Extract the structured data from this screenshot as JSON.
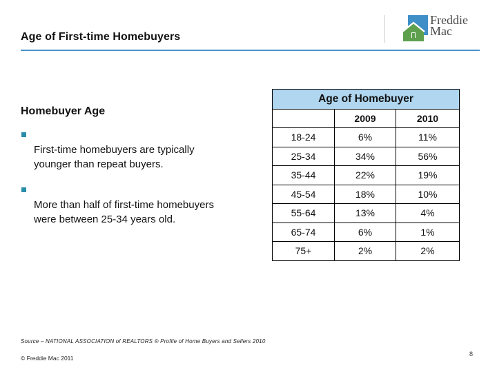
{
  "slide": {
    "title": "Age of First-time Homebuyers",
    "page_number": "8"
  },
  "logo": {
    "line1": "Freddie",
    "line2": "Mac"
  },
  "content": {
    "heading": "Homebuyer Age",
    "bullets": [
      "First-time homebuyers are typically\nyounger than repeat buyers.",
      "More than half of first-time homebuyers\nwere between 25-34 years old."
    ]
  },
  "chart_data": {
    "type": "table",
    "title": "Age of Homebuyer",
    "columns": [
      "",
      "2009",
      "2010"
    ],
    "rows": [
      [
        "18-24",
        "6%",
        "11%"
      ],
      [
        "25-34",
        "34%",
        "56%"
      ],
      [
        "35-44",
        "22%",
        "19%"
      ],
      [
        "45-54",
        "18%",
        "10%"
      ],
      [
        "55-64",
        "13%",
        "4%"
      ],
      [
        "65-74",
        "6%",
        "1%"
      ],
      [
        "75+",
        "2%",
        "2%"
      ]
    ]
  },
  "footer": {
    "source": "Source – NATIONAL ASSOCIATION of REALTORS ® Profile of Home Buyers and Sellers 2010",
    "copyright": "© Freddie Mac 2011"
  },
  "colors": {
    "accent-line": "#4993C6",
    "table-header-bg": "#B0D6F0",
    "bullet": "#2B8CA9",
    "logo-blue": "#3E8FC7",
    "logo-green": "#5FA04E"
  }
}
